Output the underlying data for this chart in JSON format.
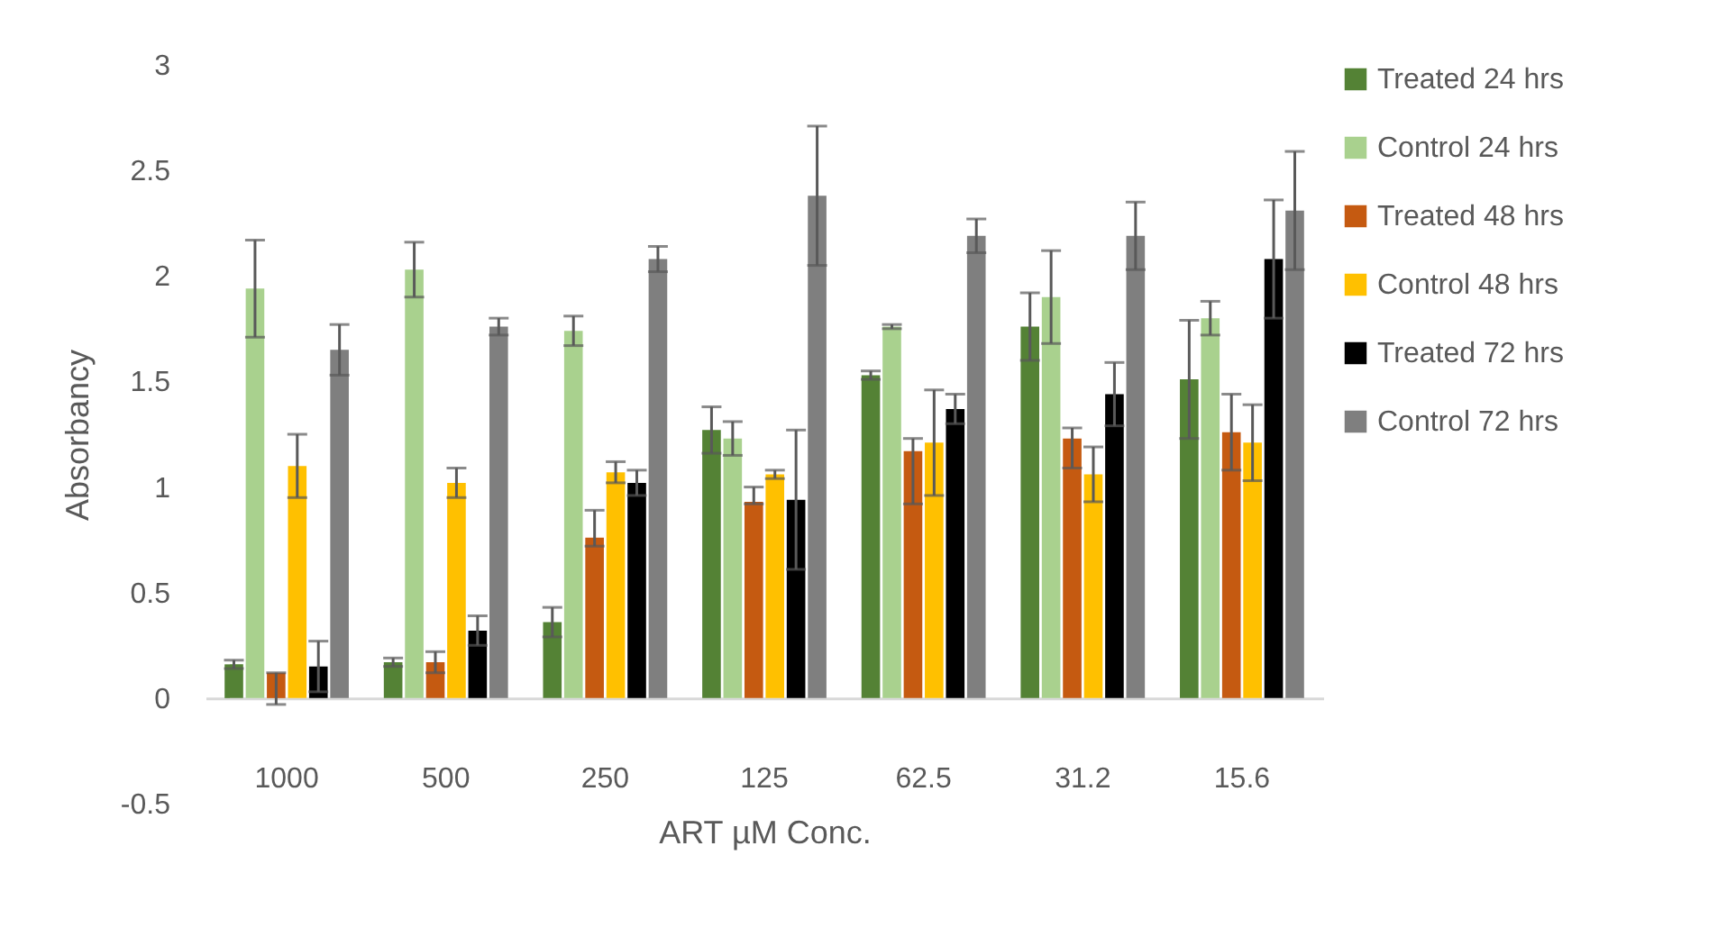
{
  "chart_data": {
    "type": "bar",
    "xlabel": "ART µM Conc.",
    "ylabel": "Absorbancy",
    "categories": [
      "1000",
      "500",
      "250",
      "125",
      "62.5",
      "31.2",
      "15.6"
    ],
    "ylim": [
      -0.5,
      3
    ],
    "yticks": [
      -0.5,
      0,
      0.5,
      1,
      1.5,
      2,
      2.5,
      3
    ],
    "legend": "right",
    "series": [
      {
        "name": "Treated 24 hrs",
        "color": "#548235",
        "values": [
          0.16,
          0.17,
          0.36,
          1.27,
          1.53,
          1.76,
          1.51
        ],
        "errors": [
          0.02,
          0.02,
          0.07,
          0.11,
          0.02,
          0.16,
          0.28
        ]
      },
      {
        "name": "Control 24 hrs",
        "color": "#a9d18e",
        "values": [
          1.94,
          2.03,
          1.74,
          1.23,
          1.76,
          1.9,
          1.8
        ],
        "errors": [
          0.23,
          0.13,
          0.07,
          0.08,
          0.01,
          0.22,
          0.08
        ]
      },
      {
        "name": "Treated 48 hrs",
        "color": "#c55a11",
        "values": [
          0.12,
          0.17,
          0.76,
          0.93,
          1.17,
          1.23,
          1.26
        ],
        "errors": [
          [
            -0.03,
            0.12
          ],
          0.05,
          [
            0.72,
            0.89
          ],
          [
            0.92,
            1.0
          ],
          [
            0.92,
            1.23
          ],
          [
            1.09,
            1.28
          ],
          0.18
        ]
      },
      {
        "name": "Control 48 hrs",
        "color": "#ffc000",
        "values": [
          1.1,
          1.02,
          1.07,
          1.06,
          1.21,
          1.06,
          1.21
        ],
        "errors": [
          0.15,
          0.07,
          0.05,
          0.02,
          0.25,
          0.13,
          0.18
        ]
      },
      {
        "name": "Treated 72 hrs",
        "color": "#000000",
        "values": [
          0.15,
          0.32,
          1.02,
          0.94,
          1.37,
          1.44,
          2.08
        ],
        "errors": [
          0.12,
          0.07,
          0.06,
          0.33,
          0.07,
          0.15,
          0.28
        ]
      },
      {
        "name": "Control 72 hrs",
        "color": "#7f7f7f",
        "values": [
          1.65,
          1.76,
          2.08,
          2.38,
          2.19,
          2.19,
          2.31
        ],
        "errors": [
          0.12,
          0.04,
          0.06,
          0.33,
          0.08,
          0.16,
          0.28
        ]
      }
    ]
  }
}
